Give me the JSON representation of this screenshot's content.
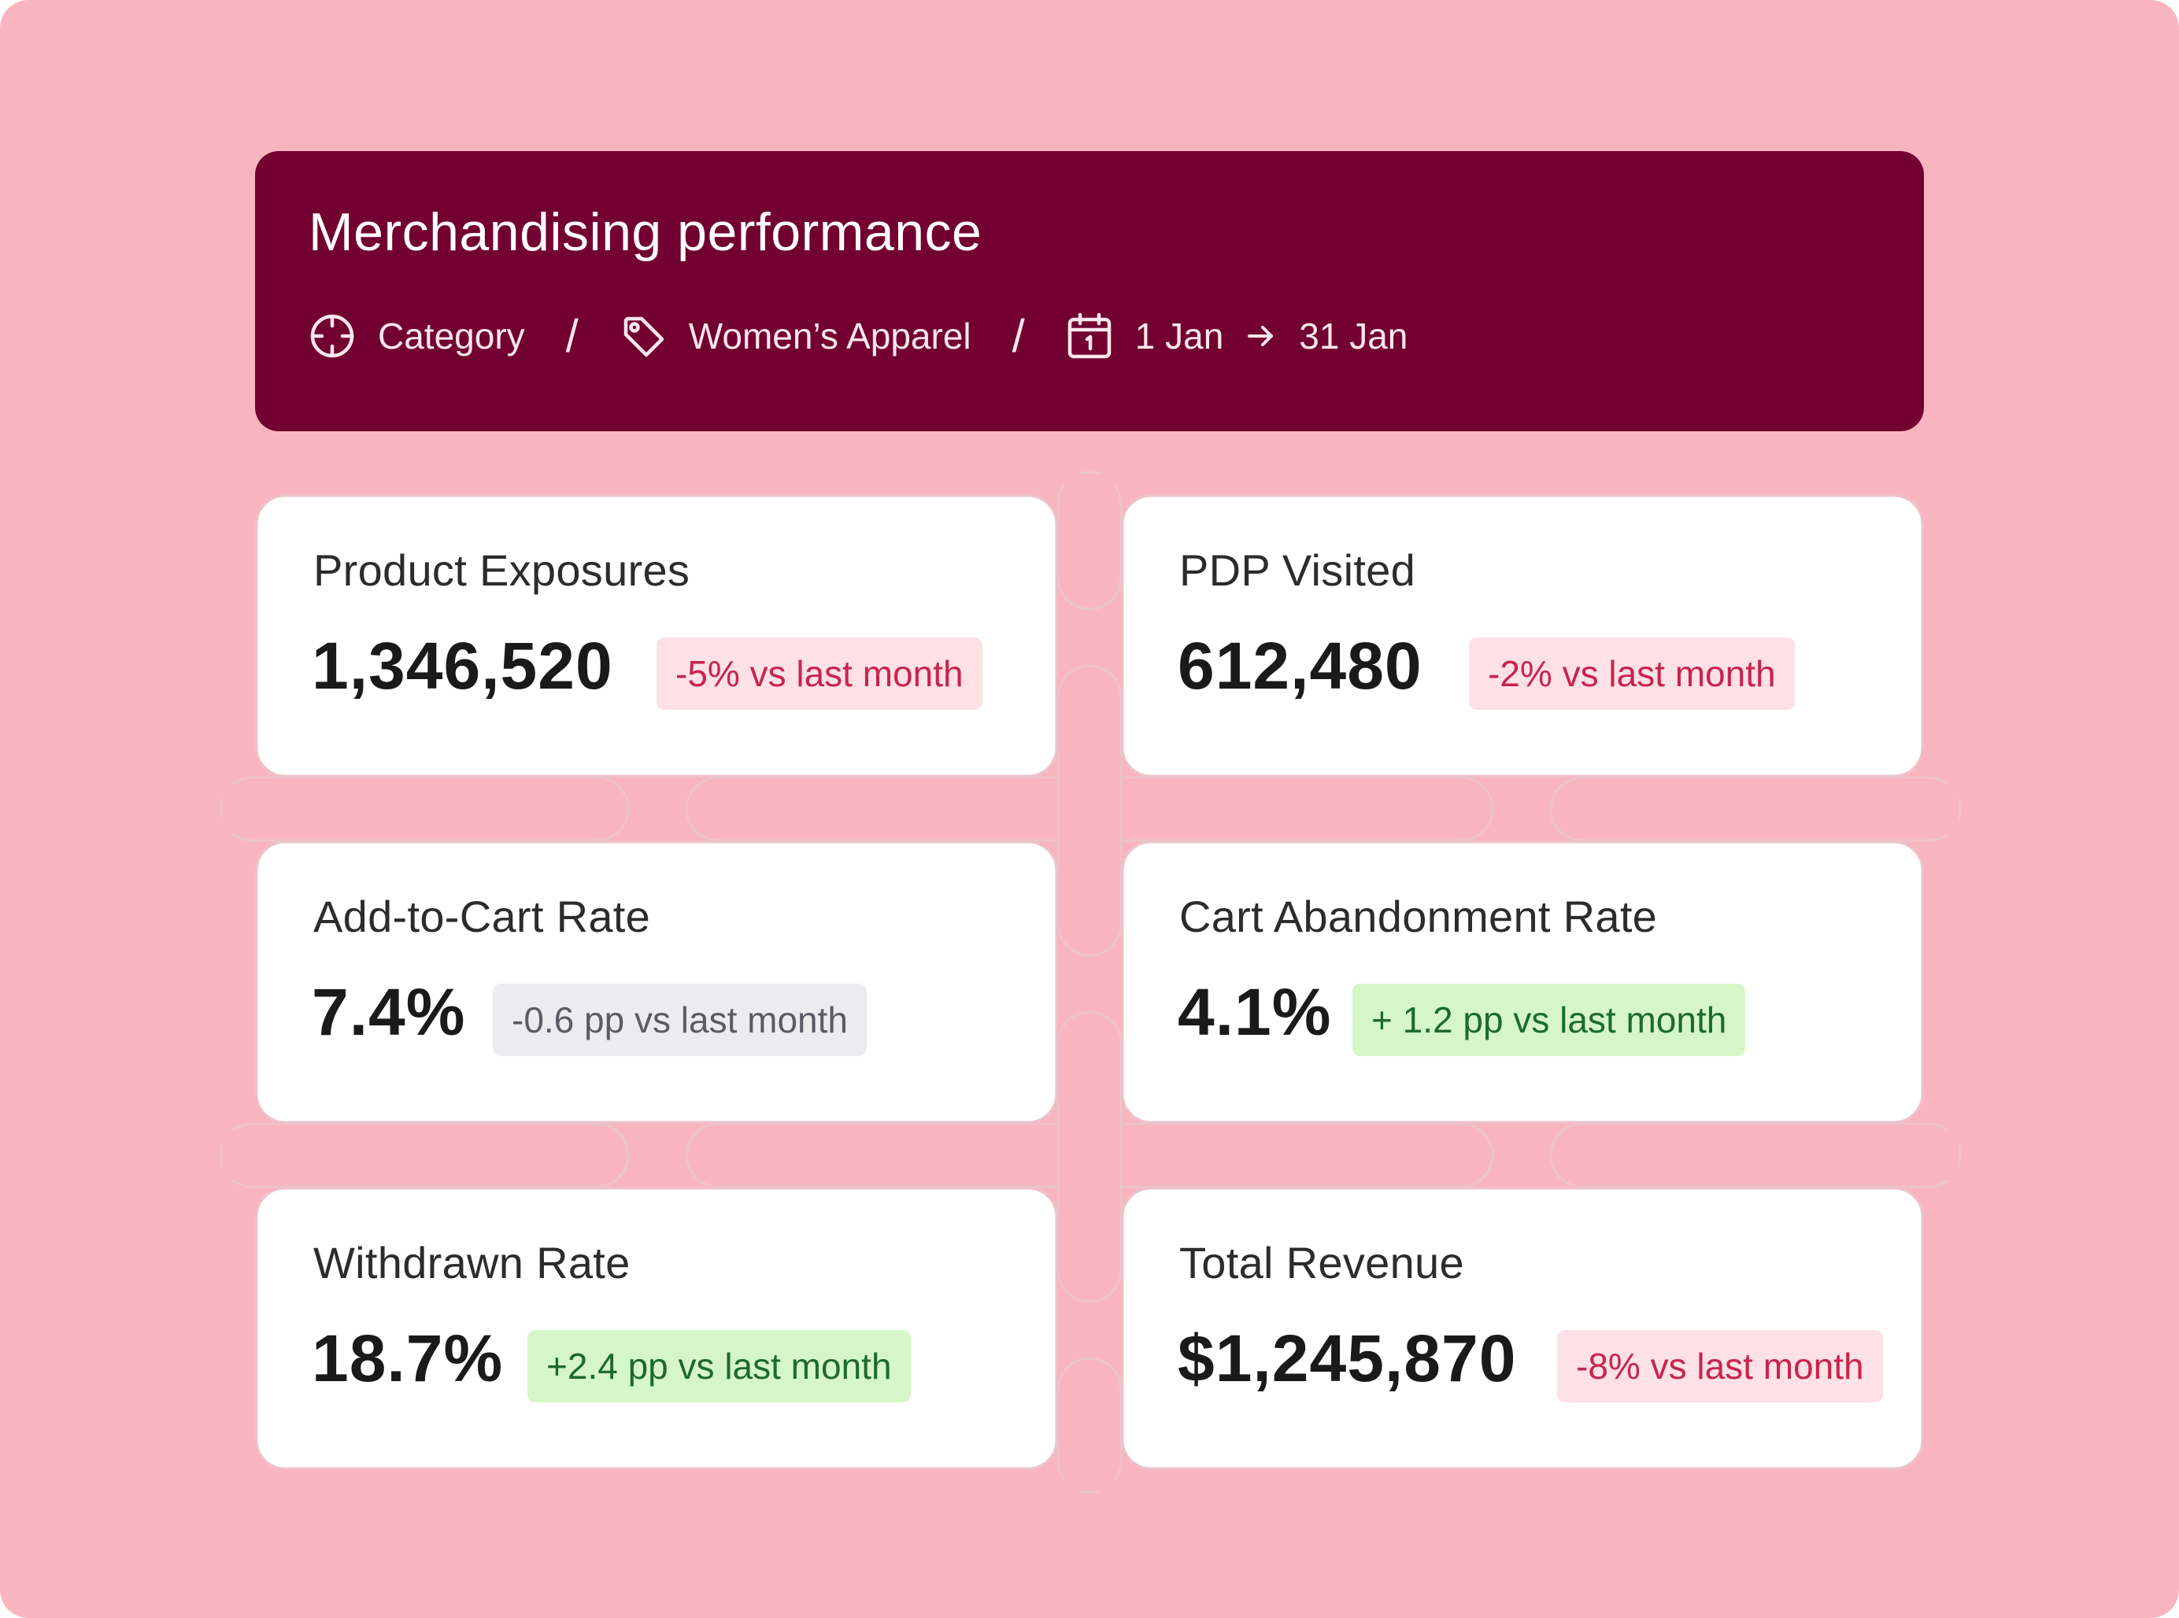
{
  "header": {
    "title": "Merchandising performance",
    "breadcrumb": {
      "level_label": "Category",
      "separator": "/",
      "item_label": "Women’s Apparel",
      "date_start": "1 Jan",
      "date_end": "31 Jan"
    },
    "icons": [
      "crosshair-icon",
      "tag-icon",
      "calendar-icon",
      "arrow-right-icon"
    ]
  },
  "colors": {
    "background": "#f9b5bf",
    "header": "#720030",
    "card": "#ffffff",
    "negative": "#c8244d",
    "positive": "#1e6a2b",
    "neutral": "#5b5b66"
  },
  "metrics": [
    {
      "label": "Product Exposures",
      "value": "1,346,520",
      "change": "-5% vs last month",
      "trend": "negative"
    },
    {
      "label": "PDP Visited",
      "value": "612,480",
      "change": "-2% vs last month",
      "trend": "negative"
    },
    {
      "label": "Add-to-Cart Rate",
      "value": "7.4%",
      "change": "-0.6 pp vs last month",
      "trend": "neutral"
    },
    {
      "label": "Cart Abandonment Rate",
      "value": "4.1%",
      "change": "+ 1.2 pp vs last month",
      "trend": "positive"
    },
    {
      "label": "Withdrawn Rate",
      "value": "18.7%",
      "change": "+2.4 pp vs last month",
      "trend": "positive"
    },
    {
      "label": "Total Revenue",
      "value": "$1,245,870",
      "change": "-8% vs last month",
      "trend": "negative"
    }
  ]
}
